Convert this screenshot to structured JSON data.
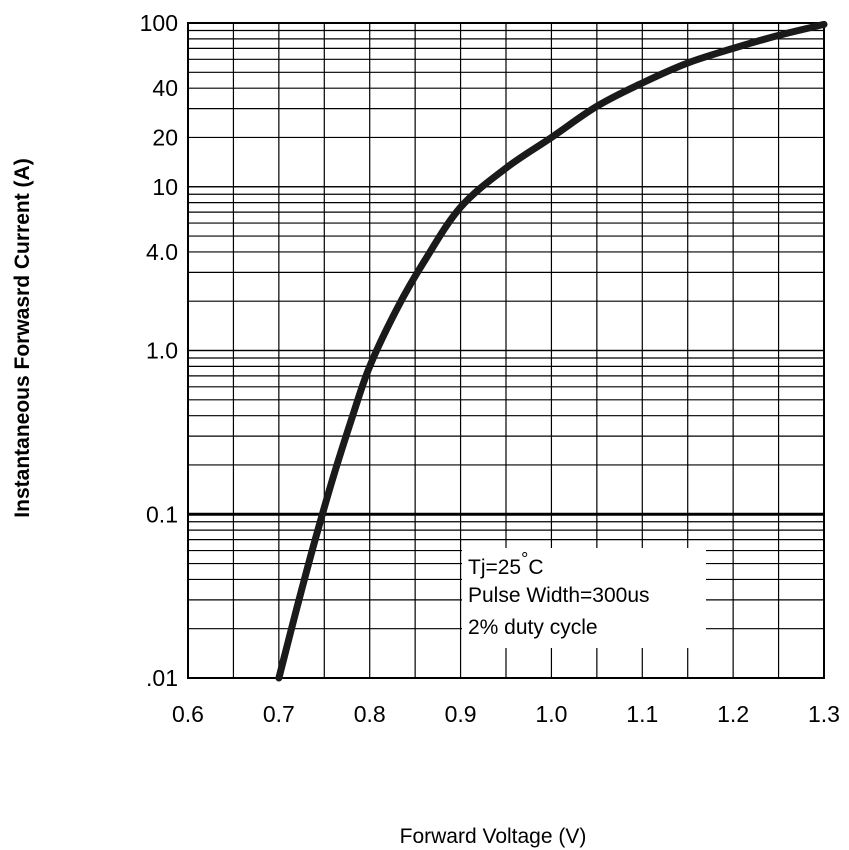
{
  "chart_data": {
    "type": "line",
    "title": "",
    "xlabel": "Forward Voltage (V)",
    "ylabel": "Instantaneous Forwasrd Current (A)",
    "xlim": [
      0.6,
      1.3
    ],
    "ylim": [
      0.01,
      100
    ],
    "yscale": "log",
    "grid": true,
    "x_ticks": [
      0.6,
      0.7,
      0.8,
      0.9,
      1.0,
      1.1,
      1.2,
      1.3
    ],
    "x_tick_labels": [
      "0.6",
      "0.7",
      "0.8",
      "0.9",
      "1.0",
      "1.1",
      "1.2",
      "1.3"
    ],
    "y_ticks": [
      0.01,
      0.1,
      1,
      4,
      10,
      20,
      40,
      100
    ],
    "y_tick_labels": [
      ".01",
      "0.1",
      "1.0",
      "4.0",
      "10",
      "20",
      "40",
      "100"
    ],
    "series": [
      {
        "name": "",
        "x": [
          0.7,
          0.72,
          0.74,
          0.76,
          0.78,
          0.8,
          0.83,
          0.86,
          0.9,
          0.95,
          1.0,
          1.05,
          1.1,
          1.15,
          1.2,
          1.25,
          1.3
        ],
        "y": [
          0.01,
          0.027,
          0.07,
          0.17,
          0.38,
          0.8,
          1.8,
          3.5,
          7.5,
          13,
          20,
          31,
          43,
          57,
          70,
          84,
          98
        ]
      }
    ],
    "annotations": {
      "line1_prefix": "Tj=25",
      "degree": "°",
      "line1_suffix": "C",
      "line2": "Pulse Width=300us",
      "line3": "2% duty cycle"
    }
  }
}
